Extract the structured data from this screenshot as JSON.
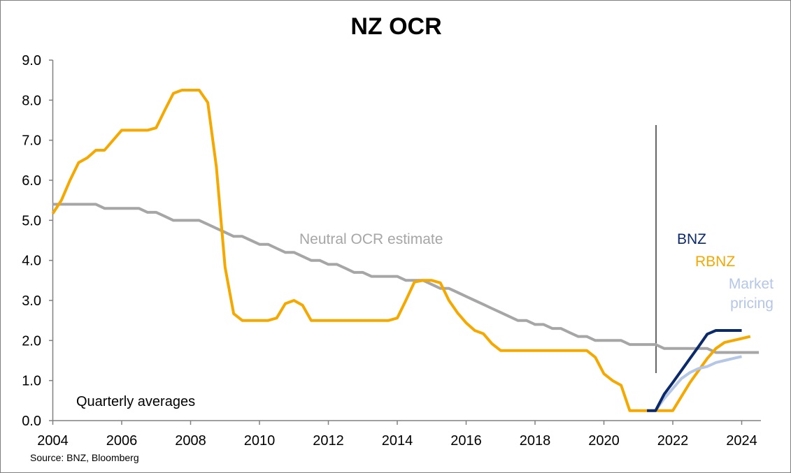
{
  "chart_data": {
    "type": "line",
    "title": "NZ OCR",
    "note": "Quarterly averages",
    "source": "Source: BNZ, Bloomberg",
    "xlim": [
      2004,
      2024.6
    ],
    "ylim": [
      0,
      9
    ],
    "x_ticks": [
      "2004",
      "2006",
      "2008",
      "2010",
      "2012",
      "2014",
      "2016",
      "2018",
      "2020",
      "2022",
      "2024"
    ],
    "y_ticks": [
      "0.0",
      "1.0",
      "2.0",
      "3.0",
      "4.0",
      "5.0",
      "6.0",
      "7.0",
      "8.0",
      "9.0"
    ],
    "forecast_start": 2021.5,
    "series": [
      {
        "name": "Neutral OCR estimate",
        "color": "#A6A6A6",
        "start": 2004,
        "step": 0.25,
        "values": [
          5.4,
          5.4,
          5.4,
          5.4,
          5.4,
          5.4,
          5.3,
          5.3,
          5.3,
          5.3,
          5.3,
          5.2,
          5.2,
          5.1,
          5.0,
          5.0,
          5.0,
          5.0,
          4.9,
          4.8,
          4.7,
          4.6,
          4.6,
          4.5,
          4.4,
          4.4,
          4.3,
          4.2,
          4.2,
          4.1,
          4.0,
          4.0,
          3.9,
          3.9,
          3.8,
          3.7,
          3.7,
          3.6,
          3.6,
          3.6,
          3.6,
          3.5,
          3.5,
          3.5,
          3.4,
          3.3,
          3.3,
          3.2,
          3.1,
          3.0,
          2.9,
          2.8,
          2.7,
          2.6,
          2.5,
          2.5,
          2.4,
          2.4,
          2.3,
          2.3,
          2.2,
          2.1,
          2.1,
          2.0,
          2.0,
          2.0,
          2.0,
          1.9,
          1.9,
          1.9,
          1.9,
          1.8,
          1.8,
          1.8,
          1.8,
          1.8,
          1.8,
          1.7,
          1.7,
          1.7,
          1.7,
          1.7,
          1.7
        ]
      },
      {
        "name": "RBNZ",
        "color": "#F5A800",
        "start": 2004,
        "step": 0.25,
        "values": [
          5.17,
          5.5,
          6.0,
          6.44,
          6.56,
          6.75,
          6.75,
          7.0,
          7.25,
          7.25,
          7.25,
          7.25,
          7.31,
          7.75,
          8.17,
          8.25,
          8.25,
          8.25,
          7.94,
          6.33,
          3.83,
          2.67,
          2.5,
          2.5,
          2.5,
          2.5,
          2.56,
          2.92,
          3.0,
          2.88,
          2.5,
          2.5,
          2.5,
          2.5,
          2.5,
          2.5,
          2.5,
          2.5,
          2.5,
          2.5,
          2.56,
          3.0,
          3.46,
          3.5,
          3.5,
          3.44,
          3.0,
          2.69,
          2.44,
          2.25,
          2.17,
          1.92,
          1.75,
          1.75,
          1.75,
          1.75,
          1.75,
          1.75,
          1.75,
          1.75,
          1.75,
          1.75,
          1.75,
          1.58,
          1.17,
          1.0,
          0.88,
          0.25,
          0.25,
          0.25,
          0.25,
          0.25,
          0.25,
          0.6,
          0.95,
          1.25,
          1.55,
          1.8,
          1.95,
          2.0,
          2.05,
          2.1
        ]
      },
      {
        "name": "BNZ",
        "color": "#0B2A6B",
        "start": 2021.25,
        "step": 0.25,
        "values": [
          0.25,
          0.25,
          0.66,
          0.95,
          1.25,
          1.55,
          1.85,
          2.16,
          2.25,
          2.25,
          2.25,
          2.25
        ]
      },
      {
        "name": "Market pricing",
        "color": "#B4C7E7",
        "start": 2021.5,
        "step": 0.25,
        "values": [
          0.25,
          0.55,
          0.8,
          1.05,
          1.2,
          1.3,
          1.35,
          1.45,
          1.5,
          1.55,
          1.6
        ]
      }
    ]
  }
}
